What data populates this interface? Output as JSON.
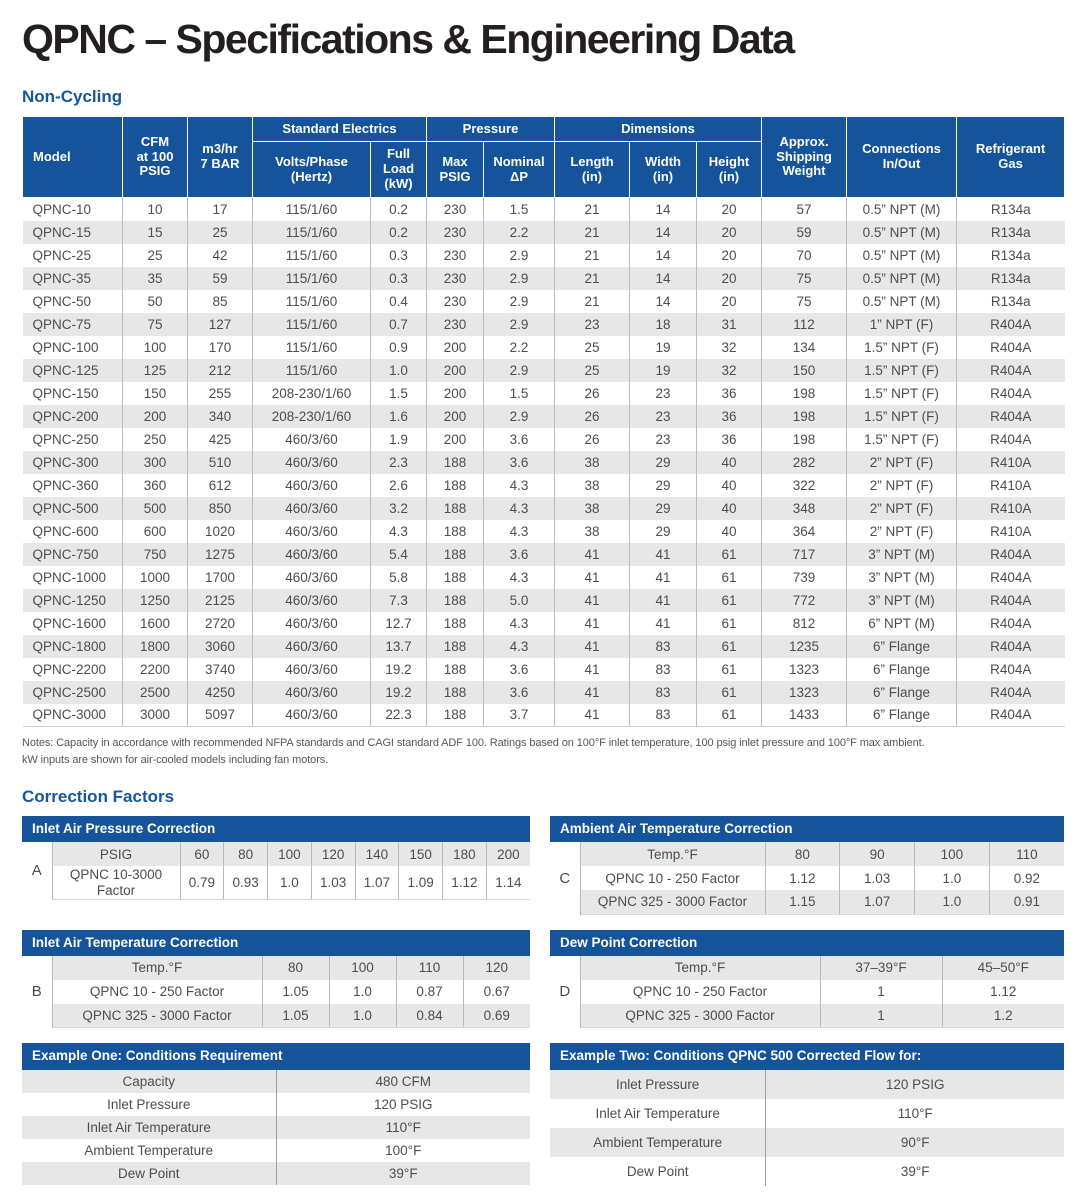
{
  "page": {
    "title": "QPNC – Specifications & Engineering Data",
    "section_noncycling": "Non-Cycling",
    "section_correction": "Correction Factors",
    "notes_line1": "Notes: Capacity in accordance with recommended NFPA standards and CAGI standard ADF 100. Ratings based on 100°F inlet temperature, 100 psig inlet pressure and 100°F max ambient.",
    "notes_line2": "kW inputs are shown for air-cooled models including fan motors."
  },
  "colors": {
    "accent_blue": "#15549b",
    "heading_blue": "#1457a0",
    "zebra_gray": "#e7e7e7",
    "title_ink": "#231f20"
  },
  "spec_table": {
    "headers": {
      "model": "Model",
      "cfm": "CFM\nat 100\nPSIG",
      "m3hr": "m3/hr\n7 BAR",
      "electrics_group": "Standard Electrics",
      "volts": "Volts/Phase\n(Hertz)",
      "full_load": "Full\nLoad\n(kW)",
      "pressure_group": "Pressure",
      "max_psig": "Max\nPSIG",
      "nominal_dp": "Nominal\nΔP",
      "dimensions_group": "Dimensions",
      "length": "Length\n(in)",
      "width": "Width\n(in)",
      "height": "Height\n(in)",
      "shipping": "Approx.\nShipping\nWeight",
      "connections": "Connections\nIn/Out",
      "refrigerant": "Refrigerant\nGas"
    },
    "rows": [
      [
        "QPNC-10",
        "10",
        "17",
        "115/1/60",
        "0.2",
        "230",
        "1.5",
        "21",
        "14",
        "20",
        "57",
        "0.5” NPT (M)",
        "R134a"
      ],
      [
        "QPNC-15",
        "15",
        "25",
        "115/1/60",
        "0.2",
        "230",
        "2.2",
        "21",
        "14",
        "20",
        "59",
        "0.5” NPT (M)",
        "R134a"
      ],
      [
        "QPNC-25",
        "25",
        "42",
        "115/1/60",
        "0.3",
        "230",
        "2.9",
        "21",
        "14",
        "20",
        "70",
        "0.5” NPT (M)",
        "R134a"
      ],
      [
        "QPNC-35",
        "35",
        "59",
        "115/1/60",
        "0.3",
        "230",
        "2.9",
        "21",
        "14",
        "20",
        "75",
        "0.5” NPT (M)",
        "R134a"
      ],
      [
        "QPNC-50",
        "50",
        "85",
        "115/1/60",
        "0.4",
        "230",
        "2.9",
        "21",
        "14",
        "20",
        "75",
        "0.5” NPT (M)",
        "R134a"
      ],
      [
        "QPNC-75",
        "75",
        "127",
        "115/1/60",
        "0.7",
        "230",
        "2.9",
        "23",
        "18",
        "31",
        "112",
        "1” NPT (F)",
        "R404A"
      ],
      [
        "QPNC-100",
        "100",
        "170",
        "115/1/60",
        "0.9",
        "200",
        "2.2",
        "25",
        "19",
        "32",
        "134",
        "1.5” NPT (F)",
        "R404A"
      ],
      [
        "QPNC-125",
        "125",
        "212",
        "115/1/60",
        "1.0",
        "200",
        "2.9",
        "25",
        "19",
        "32",
        "150",
        "1.5” NPT (F)",
        "R404A"
      ],
      [
        "QPNC-150",
        "150",
        "255",
        "208-230/1/60",
        "1.5",
        "200",
        "1.5",
        "26",
        "23",
        "36",
        "198",
        "1.5” NPT (F)",
        "R404A"
      ],
      [
        "QPNC-200",
        "200",
        "340",
        "208-230/1/60",
        "1.6",
        "200",
        "2.9",
        "26",
        "23",
        "36",
        "198",
        "1.5” NPT (F)",
        "R404A"
      ],
      [
        "QPNC-250",
        "250",
        "425",
        "460/3/60",
        "1.9",
        "200",
        "3.6",
        "26",
        "23",
        "36",
        "198",
        "1.5” NPT (F)",
        "R404A"
      ],
      [
        "QPNC-300",
        "300",
        "510",
        "460/3/60",
        "2.3",
        "188",
        "3.6",
        "38",
        "29",
        "40",
        "282",
        "2” NPT (F)",
        "R410A"
      ],
      [
        "QPNC-360",
        "360",
        "612",
        "460/3/60",
        "2.6",
        "188",
        "4.3",
        "38",
        "29",
        "40",
        "322",
        "2” NPT (F)",
        "R410A"
      ],
      [
        "QPNC-500",
        "500",
        "850",
        "460/3/60",
        "3.2",
        "188",
        "4.3",
        "38",
        "29",
        "40",
        "348",
        "2” NPT (F)",
        "R410A"
      ],
      [
        "QPNC-600",
        "600",
        "1020",
        "460/3/60",
        "4.3",
        "188",
        "4.3",
        "38",
        "29",
        "40",
        "364",
        "2” NPT (F)",
        "R410A"
      ],
      [
        "QPNC-750",
        "750",
        "1275",
        "460/3/60",
        "5.4",
        "188",
        "3.6",
        "41",
        "41",
        "61",
        "717",
        "3” NPT (M)",
        "R404A"
      ],
      [
        "QPNC-1000",
        "1000",
        "1700",
        "460/3/60",
        "5.8",
        "188",
        "4.3",
        "41",
        "41",
        "61",
        "739",
        "3” NPT (M)",
        "R404A"
      ],
      [
        "QPNC-1250",
        "1250",
        "2125",
        "460/3/60",
        "7.3",
        "188",
        "5.0",
        "41",
        "41",
        "61",
        "772",
        "3” NPT (M)",
        "R404A"
      ],
      [
        "QPNC-1600",
        "1600",
        "2720",
        "460/3/60",
        "12.7",
        "188",
        "4.3",
        "41",
        "41",
        "61",
        "812",
        "6” NPT (M)",
        "R404A"
      ],
      [
        "QPNC-1800",
        "1800",
        "3060",
        "460/3/60",
        "13.7",
        "188",
        "4.3",
        "41",
        "83",
        "61",
        "1235",
        "6” Flange",
        "R404A"
      ],
      [
        "QPNC-2200",
        "2200",
        "3740",
        "460/3/60",
        "19.2",
        "188",
        "3.6",
        "41",
        "83",
        "61",
        "1323",
        "6” Flange",
        "R404A"
      ],
      [
        "QPNC-2500",
        "2500",
        "4250",
        "460/3/60",
        "19.2",
        "188",
        "3.6",
        "41",
        "83",
        "61",
        "1323",
        "6” Flange",
        "R404A"
      ],
      [
        "QPNC-3000",
        "3000",
        "5097",
        "460/3/60",
        "22.3",
        "188",
        "3.7",
        "41",
        "83",
        "61",
        "1433",
        "6” Flange",
        "R404A"
      ]
    ]
  },
  "correction_tables": {
    "A": {
      "letter": "A",
      "title": "Inlet Air Pressure Correction",
      "rows": [
        {
          "label": "PSIG",
          "values": [
            "60",
            "80",
            "100",
            "120",
            "140",
            "150",
            "180",
            "200"
          ]
        },
        {
          "label": "QPNC 10-3000 Factor",
          "values": [
            "0.79",
            "0.93",
            "1.0",
            "1.03",
            "1.07",
            "1.09",
            "1.12",
            "1.14"
          ]
        }
      ]
    },
    "C": {
      "letter": "C",
      "title": "Ambient Air Temperature Correction",
      "rows": [
        {
          "label": "Temp.°F",
          "values": [
            "80",
            "90",
            "100",
            "110"
          ]
        },
        {
          "label": "QPNC 10 - 250 Factor",
          "values": [
            "1.12",
            "1.03",
            "1.0",
            "0.92"
          ]
        },
        {
          "label": "QPNC 325 - 3000 Factor",
          "values": [
            "1.15",
            "1.07",
            "1.0",
            "0.91"
          ]
        }
      ]
    },
    "B": {
      "letter": "B",
      "title": "Inlet Air Temperature Correction",
      "rows": [
        {
          "label": "Temp.°F",
          "values": [
            "80",
            "100",
            "110",
            "120"
          ]
        },
        {
          "label": "QPNC 10 - 250 Factor",
          "values": [
            "1.05",
            "1.0",
            "0.87",
            "0.67"
          ]
        },
        {
          "label": "QPNC 325 - 3000 Factor",
          "values": [
            "1.05",
            "1.0",
            "0.84",
            "0.69"
          ]
        }
      ]
    },
    "D": {
      "letter": "D",
      "title": "Dew Point Correction",
      "rows": [
        {
          "label": "Temp.°F",
          "values": [
            "37–39°F",
            "45–50°F"
          ]
        },
        {
          "label": "QPNC 10 - 250 Factor",
          "values": [
            "1",
            "1.12"
          ]
        },
        {
          "label": "QPNC 325 - 3000 Factor",
          "values": [
            "1",
            "1.2"
          ]
        }
      ]
    }
  },
  "examples": {
    "one": {
      "title": "Example One: Conditions Requirement",
      "rows": [
        {
          "label": "Capacity",
          "value": "480 CFM"
        },
        {
          "label": "Inlet Pressure",
          "value": "120 PSIG"
        },
        {
          "label": "Inlet Air Temperature",
          "value": "110°F"
        },
        {
          "label": "Ambient Temperature",
          "value": "100°F"
        },
        {
          "label": "Dew Point",
          "value": "39°F"
        }
      ]
    },
    "two": {
      "title": "Example Two: Conditions QPNC 500 Corrected Flow for:",
      "rows": [
        {
          "label": "Inlet Pressure",
          "value": "120 PSIG"
        },
        {
          "label": "Inlet Air Temperature",
          "value": "110°F"
        },
        {
          "label": "Ambient Temperature",
          "value": "90°F"
        },
        {
          "label": "Dew Point",
          "value": "39°F"
        }
      ]
    }
  }
}
